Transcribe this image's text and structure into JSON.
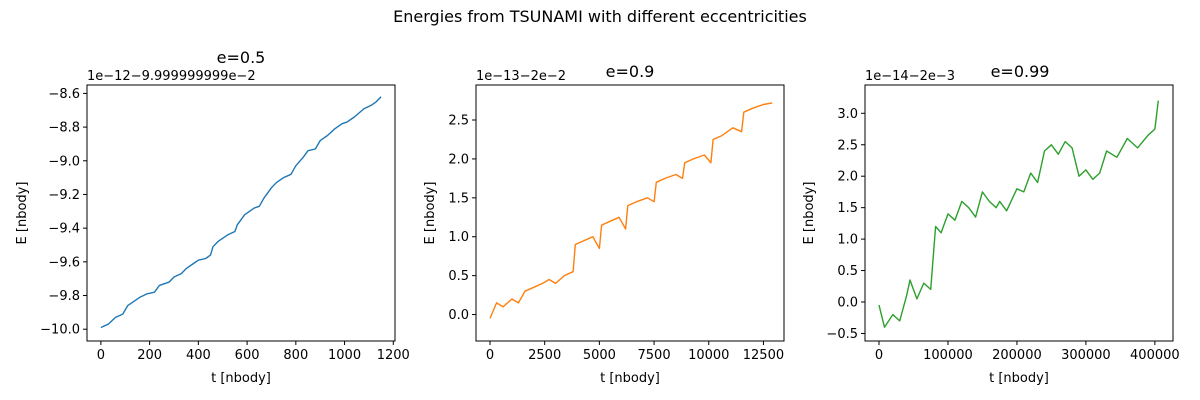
{
  "figure": {
    "suptitle": "Energies from TSUNAMI with different eccentricities"
  },
  "chart_data": [
    {
      "type": "line",
      "title": "e=0.5",
      "xlabel": "t [nbody]",
      "ylabel": "E [nbody]",
      "offset_text": "1e−12−9.999999999e−2",
      "xlim": [
        -57,
        1207
      ],
      "ylim": [
        -10.07,
        -8.55
      ],
      "xticks": [
        0,
        200,
        400,
        600,
        800,
        1000,
        1200
      ],
      "xtick_labels": [
        "0",
        "200",
        "400",
        "600",
        "800",
        "1000",
        "1200"
      ],
      "yticks": [
        -10.0,
        -9.8,
        -9.6,
        -9.4,
        -9.2,
        -9.0,
        -8.8,
        -8.6
      ],
      "ytick_labels": [
        "−10.0",
        "−9.8",
        "−9.6",
        "−9.4",
        "−9.2",
        "−9.0",
        "−8.8",
        "−8.6"
      ],
      "color": "#1f77b4",
      "series": [
        {
          "x": [
            0,
            30,
            60,
            90,
            110,
            130,
            160,
            190,
            220,
            240,
            280,
            300,
            330,
            350,
            380,
            400,
            430,
            450,
            460,
            480,
            520,
            550,
            560,
            590,
            630,
            650,
            670,
            700,
            720,
            750,
            780,
            800,
            830,
            850,
            880,
            900,
            930,
            960,
            990,
            1010,
            1040,
            1080,
            1110,
            1130,
            1150
          ],
          "y": [
            -9.99,
            -9.97,
            -9.93,
            -9.91,
            -9.86,
            -9.84,
            -9.81,
            -9.79,
            -9.78,
            -9.74,
            -9.72,
            -9.69,
            -9.67,
            -9.64,
            -9.61,
            -9.59,
            -9.58,
            -9.56,
            -9.51,
            -9.48,
            -9.44,
            -9.42,
            -9.38,
            -9.32,
            -9.28,
            -9.27,
            -9.22,
            -9.16,
            -9.13,
            -9.1,
            -9.08,
            -9.03,
            -8.98,
            -8.94,
            -8.93,
            -8.88,
            -8.85,
            -8.81,
            -8.78,
            -8.77,
            -8.74,
            -8.69,
            -8.67,
            -8.65,
            -8.62
          ]
        }
      ]
    },
    {
      "type": "line",
      "title": "e=0.9",
      "xlabel": "t [nbody]",
      "ylabel": "E [nbody]",
      "offset_text": "1e−13−2e−2",
      "xlim": [
        -640,
        13440
      ],
      "ylim": [
        -0.34,
        2.95
      ],
      "xticks": [
        0,
        2500,
        5000,
        7500,
        10000,
        12500
      ],
      "xtick_labels": [
        "0",
        "2500",
        "5000",
        "7500",
        "10000",
        "12500"
      ],
      "yticks": [
        0.0,
        0.5,
        1.0,
        1.5,
        2.0,
        2.5
      ],
      "ytick_labels": [
        "0.0",
        "0.5",
        "1.0",
        "1.5",
        "2.0",
        "2.5"
      ],
      "color": "#ff7f0e",
      "series": [
        {
          "x": [
            0,
            300,
            600,
            1000,
            1300,
            1600,
            2000,
            2400,
            2700,
            3000,
            3400,
            3800,
            3900,
            4300,
            4700,
            5000,
            5100,
            5500,
            5900,
            6200,
            6300,
            6700,
            7200,
            7500,
            7600,
            8000,
            8500,
            8800,
            8900,
            9300,
            9800,
            10100,
            10200,
            10600,
            11100,
            11500,
            11600,
            12000,
            12500,
            12900
          ],
          "y": [
            -0.05,
            0.15,
            0.1,
            0.2,
            0.15,
            0.3,
            0.35,
            0.4,
            0.45,
            0.4,
            0.5,
            0.55,
            0.9,
            0.95,
            1.0,
            0.85,
            1.15,
            1.2,
            1.25,
            1.1,
            1.4,
            1.45,
            1.5,
            1.45,
            1.7,
            1.75,
            1.8,
            1.75,
            1.95,
            2.0,
            2.05,
            1.95,
            2.25,
            2.3,
            2.4,
            2.35,
            2.6,
            2.65,
            2.7,
            2.72
          ]
        }
      ]
    },
    {
      "type": "line",
      "title": "e=0.99",
      "xlabel": "t [nbody]",
      "ylabel": "E [nbody]",
      "offset_text": "1e−14−2e−3",
      "xlim": [
        -20300,
        426300
      ],
      "ylim": [
        -0.62,
        3.45
      ],
      "xticks": [
        0,
        100000,
        200000,
        300000,
        400000
      ],
      "xtick_labels": [
        "0",
        "100000",
        "200000",
        "300000",
        "400000"
      ],
      "yticks": [
        -0.5,
        0.0,
        0.5,
        1.0,
        1.5,
        2.0,
        2.5,
        3.0
      ],
      "ytick_labels": [
        "−0.5",
        "0.0",
        "0.5",
        "1.0",
        "1.5",
        "2.0",
        "2.5",
        "3.0"
      ],
      "color": "#2ca02c",
      "series": [
        {
          "x": [
            0,
            8000,
            20000,
            30000,
            40000,
            45000,
            55000,
            65000,
            75000,
            82000,
            90000,
            100000,
            110000,
            120000,
            130000,
            140000,
            150000,
            160000,
            170000,
            175000,
            185000,
            200000,
            210000,
            220000,
            230000,
            240000,
            250000,
            260000,
            270000,
            280000,
            290000,
            300000,
            310000,
            320000,
            330000,
            345000,
            360000,
            375000,
            390000,
            400000,
            405000
          ],
          "y": [
            -0.05,
            -0.4,
            -0.2,
            -0.3,
            0.1,
            0.35,
            0.05,
            0.3,
            0.2,
            1.2,
            1.1,
            1.4,
            1.3,
            1.6,
            1.5,
            1.35,
            1.75,
            1.6,
            1.5,
            1.6,
            1.45,
            1.8,
            1.75,
            2.05,
            1.9,
            2.4,
            2.5,
            2.35,
            2.55,
            2.45,
            2.0,
            2.1,
            1.95,
            2.05,
            2.4,
            2.3,
            2.6,
            2.45,
            2.65,
            2.75,
            3.2
          ]
        }
      ]
    }
  ]
}
